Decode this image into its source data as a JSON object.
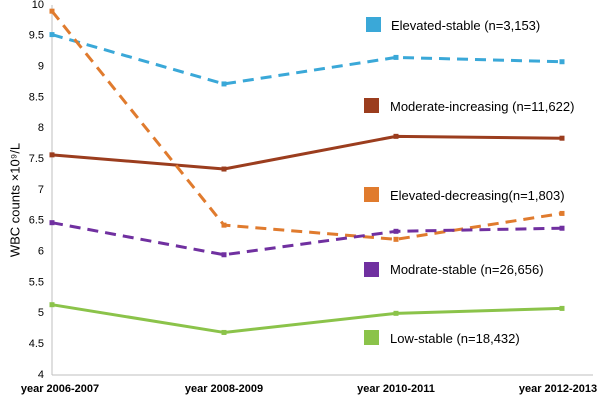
{
  "chart_data": {
    "type": "line",
    "title": "",
    "xlabel": "",
    "ylabel": "WBC counts ×10⁹/L",
    "ylim": [
      4,
      10
    ],
    "yticks": [
      "4",
      "4.5",
      "5",
      "5.5",
      "6",
      "6.5",
      "7",
      "7.5",
      "8",
      "8.5",
      "9",
      "9.5",
      "10"
    ],
    "categories": [
      "year 2006-2007",
      "year 2008-2009",
      "year 2010-2011",
      "year 2012-2013"
    ],
    "grid": false,
    "series": [
      {
        "name": "Elevated-stable (n=3,153)",
        "values": [
          9.52,
          8.72,
          9.15,
          9.08
        ],
        "color": "#3AA8D8",
        "dashed": true,
        "markerShape": "square"
      },
      {
        "name": "Moderate-increasing (n=11,622)",
        "values": [
          7.57,
          7.34,
          7.87,
          7.84
        ],
        "color": "#9B3D1E",
        "dashed": false,
        "markerShape": "square"
      },
      {
        "name": "Elevated-decreasing(n=1,803)",
        "values": [
          9.9,
          6.43,
          6.2,
          6.62
        ],
        "color": "#E07B2E",
        "dashed": true,
        "markerShape": "square"
      },
      {
        "name": "Modrate-stable (n=26,656)",
        "values": [
          6.47,
          5.95,
          6.33,
          6.38
        ],
        "color": "#7030A0",
        "dashed": true,
        "markerShape": "square"
      },
      {
        "name": "Low-stable (n=18,432)",
        "values": [
          5.14,
          4.69,
          5.0,
          5.08
        ],
        "color": "#8BC34A",
        "dashed": false,
        "markerShape": "square"
      }
    ]
  }
}
